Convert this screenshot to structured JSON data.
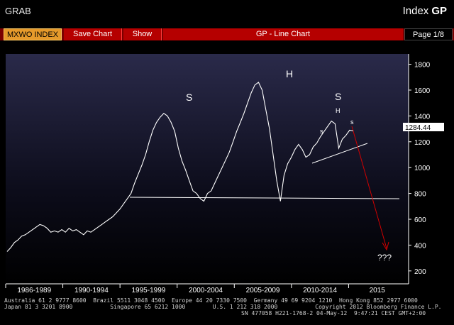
{
  "header": {
    "grab_label": "GRAB",
    "security_label": "Index",
    "function_code": "GP"
  },
  "toolbar": {
    "ticker": "MXWO INDEX",
    "save_chart": "Save Chart",
    "show": "Show",
    "title": "GP - Line Chart",
    "page": "Page 1/8"
  },
  "chart_data": {
    "type": "line",
    "ylim": [
      100,
      1880
    ],
    "yticks": [
      200,
      400,
      600,
      800,
      1000,
      1200,
      1400,
      1600,
      1800
    ],
    "x_period_labels": [
      "1986-1989",
      "1990-1994",
      "1995-1999",
      "2000-2004",
      "2005-2009",
      "2010-2014",
      "2015"
    ],
    "last_value_label": "1284.44",
    "series": [
      {
        "values": [
          350,
          380,
          420,
          440,
          470,
          480,
          500,
          520,
          540,
          560,
          550,
          530,
          500,
          510,
          500,
          520,
          500,
          530,
          510,
          520,
          500,
          480,
          510,
          500,
          520,
          540,
          560,
          580,
          600,
          620,
          650,
          680,
          720,
          760,
          800,
          880,
          950,
          1020,
          1100,
          1200,
          1290,
          1350,
          1390,
          1420,
          1400,
          1350,
          1280,
          1150,
          1050,
          980,
          900,
          820,
          800,
          760,
          740,
          800,
          820,
          880,
          940,
          1000,
          1060,
          1120,
          1200,
          1280,
          1350,
          1420,
          1500,
          1580,
          1640,
          1660,
          1600,
          1450,
          1300,
          1100,
          900,
          740,
          940,
          1030,
          1080,
          1140,
          1180,
          1140,
          1080,
          1100,
          1160,
          1190,
          1240,
          1280,
          1320,
          1360,
          1340,
          1150,
          1220,
          1250,
          1290,
          1284
        ]
      }
    ],
    "annotations": {
      "left_shoulder": "S",
      "head": "H",
      "right_shoulder": "S",
      "inner_head": "H",
      "inner_left_shoulder": "s",
      "inner_right_shoulder": "s",
      "target": "???"
    }
  },
  "footer": {
    "line1": "Australia 61 2 9777 8600  Brazil 5511 3048 4500  Europe 44 20 7330 7500  Germany 49 69 9204 1210  Hong Kong 852 2977 6000",
    "line2": "Japan 81 3 3201 8900           Singapore 65 6212 1000        U.S. 1 212 318 2000           Copyright 2012 Bloomberg Finance L.P.",
    "line3": "SN 477058 H221-1768-2 04-May-12  9:47:21 CEST GMT+2:00"
  }
}
